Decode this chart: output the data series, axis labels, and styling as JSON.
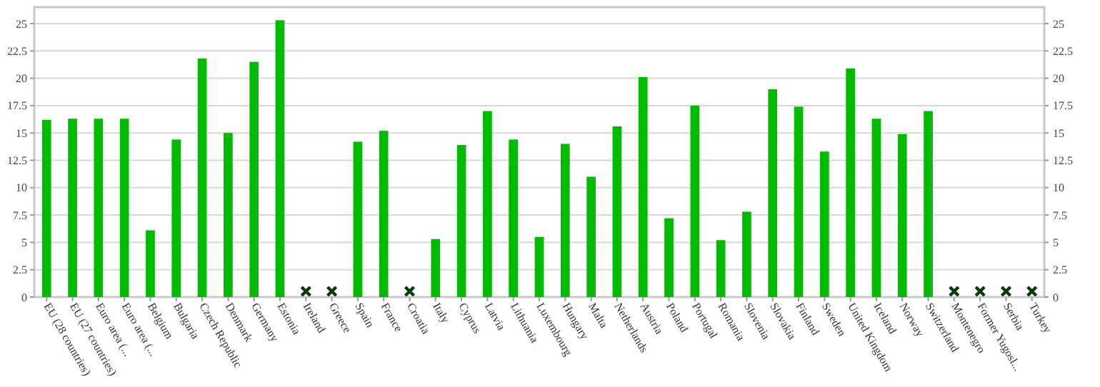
{
  "chart_data": {
    "type": "bar",
    "categories": [
      "EU (28 countries)",
      "EU (27 countries)",
      "Euro area (...",
      "Euro area (...",
      "Belgium",
      "Bulgaria",
      "Czech Republic",
      "Denmark",
      "Germany",
      "Estonia",
      "Ireland",
      "Greece",
      "Spain",
      "France",
      "Croatia",
      "Italy",
      "Cyprus",
      "Latvia",
      "Lithuania",
      "Luxembourg",
      "Hungary",
      "Malta",
      "Netherlands",
      "Austria",
      "Poland",
      "Portugal",
      "Romania",
      "Slovenia",
      "Slovakia",
      "Finland",
      "Sweden",
      "United Kingdom",
      "Iceland",
      "Norway",
      "Switzerland",
      "Montenegro",
      "Former Yugosl...",
      "Serbia",
      "Turkey"
    ],
    "series": [
      {
        "color": "#00bb00",
        "values": [
          16.2,
          16.3,
          16.3,
          16.3,
          6.1,
          14.4,
          21.8,
          15.0,
          21.5,
          25.3,
          null,
          null,
          14.2,
          15.2,
          null,
          5.3,
          13.9,
          17.0,
          14.4,
          5.5,
          14.0,
          11.0,
          15.6,
          20.1,
          7.2,
          17.5,
          5.2,
          7.8,
          19.0,
          17.4,
          13.3,
          20.9,
          16.3,
          14.9,
          17.0,
          null,
          null,
          null,
          null
        ]
      }
    ],
    "ylim": [
      0,
      26.5
    ],
    "yticks": [
      0,
      2.5,
      5,
      7.5,
      10,
      12.5,
      15,
      17.5,
      20,
      22.5,
      25
    ],
    "y2lim": [
      0,
      26.5
    ],
    "y2ticks": [
      0,
      2.5,
      5,
      7.5,
      10,
      12.5,
      15,
      17.5,
      20,
      22.5,
      25
    ],
    "grid": "y"
  }
}
